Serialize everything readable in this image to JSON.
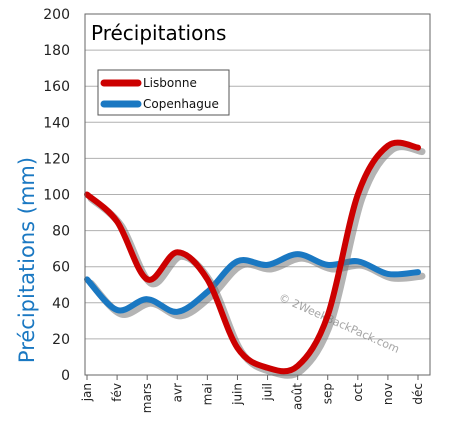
{
  "chart_data": {
    "type": "line",
    "title": "Précipitations",
    "ylabel": "Précipitations (mm)",
    "xlabel": "",
    "ylim": [
      0,
      200
    ],
    "yticks": [
      0,
      20,
      40,
      60,
      80,
      100,
      120,
      140,
      160,
      180,
      200
    ],
    "grid": true,
    "legend_position": "top-left",
    "categories": [
      "jan",
      "fév",
      "mars",
      "avr",
      "mai",
      "juin",
      "juil",
      "août",
      "sep",
      "oct",
      "nov",
      "déc"
    ],
    "series": [
      {
        "name": "Lisbonne",
        "color": "#cc0000",
        "values": [
          100,
          85,
          53,
          68,
          53,
          15,
          4,
          5,
          33,
          100,
          127,
          126
        ]
      },
      {
        "name": "Copenhague",
        "color": "#1a78c2",
        "values": [
          53,
          36,
          42,
          35,
          46,
          63,
          61,
          67,
          61,
          63,
          56,
          57
        ]
      }
    ],
    "watermark": "© 2WeekBackPack.com"
  },
  "colors": {
    "ylabel": "#1a78c2",
    "grid": "#b0b0b0",
    "shadow": "#777777"
  }
}
